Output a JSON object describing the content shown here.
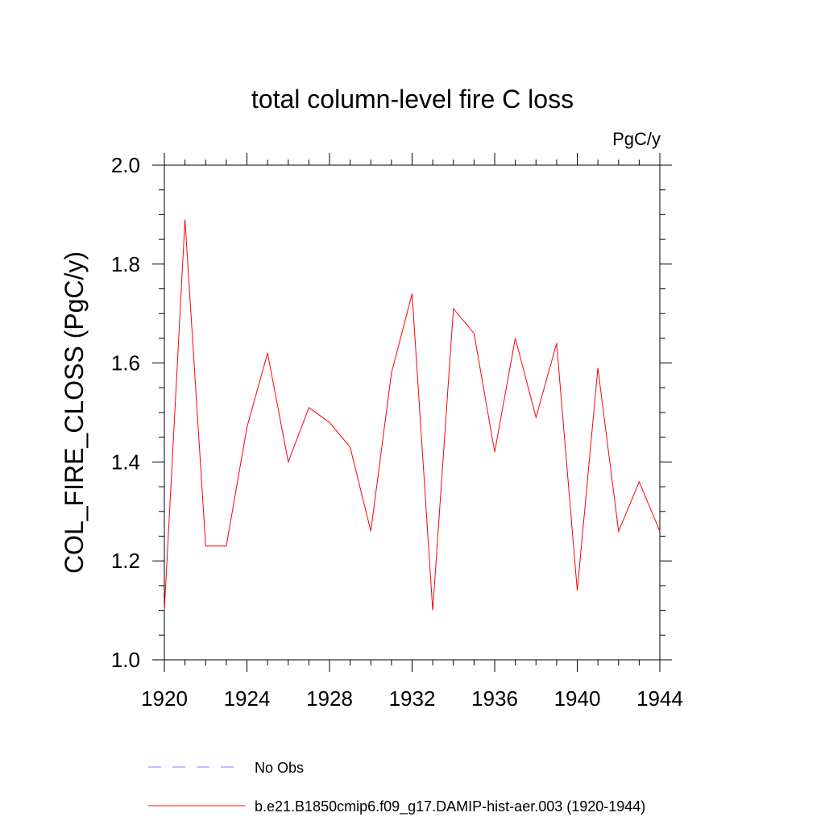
{
  "chart_data": {
    "type": "line",
    "title": "total column-level fire C loss",
    "units_label": "PgC/y",
    "xlabel": "",
    "ylabel": "COL_FIRE_CLOSS  (PgC/y)",
    "xlim": [
      1920,
      1944
    ],
    "ylim": [
      1.0,
      2.0
    ],
    "x_ticks": [
      1920,
      1924,
      1928,
      1932,
      1936,
      1940,
      1944
    ],
    "y_ticks": [
      "1.0",
      "1.2",
      "1.4",
      "1.6",
      "1.8",
      "2.0"
    ],
    "grid": false,
    "legend_position": "bottom",
    "series": [
      {
        "name": "b.e21.B1850cmip6.f09_g17.DAMIP-hist-aer.003 (1920-1944)",
        "color": "#ff0000",
        "style": "solid",
        "x": [
          1920,
          1921,
          1922,
          1923,
          1924,
          1925,
          1926,
          1927,
          1928,
          1929,
          1930,
          1931,
          1932,
          1933,
          1934,
          1935,
          1936,
          1937,
          1938,
          1939,
          1940,
          1941,
          1942,
          1943,
          1944
        ],
        "y": [
          1.1,
          1.89,
          1.23,
          1.23,
          1.47,
          1.62,
          1.4,
          1.51,
          1.48,
          1.43,
          1.26,
          1.58,
          1.74,
          1.1,
          1.71,
          1.66,
          1.42,
          1.65,
          1.49,
          1.64,
          1.14,
          1.59,
          1.26,
          1.36,
          1.26
        ]
      }
    ],
    "legend": [
      {
        "label": "No Obs",
        "color": "#8080ff",
        "style": "dashed"
      },
      {
        "label": "b.e21.B1850cmip6.f09_g17.DAMIP-hist-aer.003 (1920-1944)",
        "color": "#ff0000",
        "style": "solid"
      }
    ]
  }
}
